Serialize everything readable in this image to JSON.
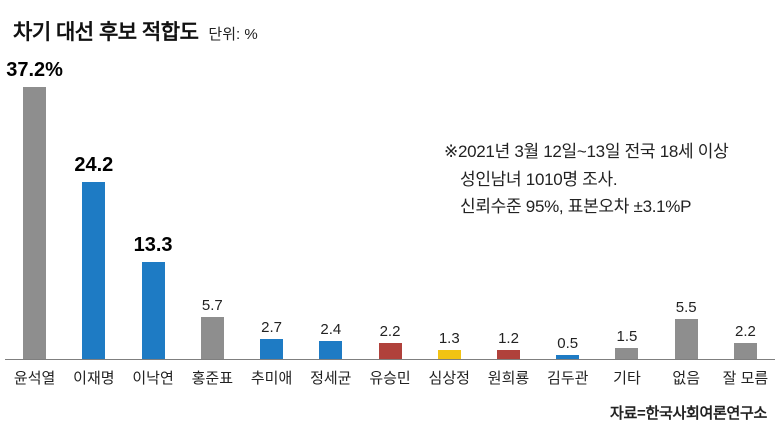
{
  "header": {
    "title": "차기 대선 후보 적합도",
    "unit": "단위: %"
  },
  "annotation": {
    "lines": [
      "※2021년 3월 12일~13일 전국 18세 이상",
      "성인남녀 1010명 조사.",
      "신뢰수준 95%, 표본오차 ±3.1%P"
    ]
  },
  "source": "자료=한국사회여론연구소",
  "chart_data": {
    "type": "bar",
    "title": "차기 대선 후보 적합도",
    "unit": "%",
    "categories": [
      "윤석열",
      "이재명",
      "이낙연",
      "홍준표",
      "추미애",
      "정세균",
      "유승민",
      "심상정",
      "원희룡",
      "김두관",
      "기타",
      "없음",
      "잘 모름"
    ],
    "values": [
      37.2,
      24.2,
      13.3,
      5.7,
      2.7,
      2.4,
      2.2,
      1.3,
      1.2,
      0.5,
      1.5,
      5.5,
      2.2
    ],
    "value_labels": [
      "37.2%",
      "24.2",
      "13.3",
      "5.7",
      "2.7",
      "2.4",
      "2.2",
      "1.3",
      "1.2",
      "0.5",
      "1.5",
      "5.5",
      "2.2"
    ],
    "emphasized": [
      true,
      true,
      true,
      false,
      false,
      false,
      false,
      false,
      false,
      false,
      false,
      false,
      false
    ],
    "colors": [
      "#8e8e8e",
      "#1e7bc4",
      "#1e7bc4",
      "#8e8e8e",
      "#1e7bc4",
      "#1e7bc4",
      "#b0413b",
      "#f2c313",
      "#b0413b",
      "#1e7bc4",
      "#8e8e8e",
      "#8e8e8e",
      "#8e8e8e"
    ],
    "ylim": [
      0,
      40
    ],
    "grid": false,
    "legend": "none",
    "footnote": "※2021년 3월 12일~13일 전국 18세 이상 성인남녀 1010명 조사. 신뢰수준 95%, 표본오차 ±3.1%P",
    "source": "자료=한국사회여론연구소"
  }
}
